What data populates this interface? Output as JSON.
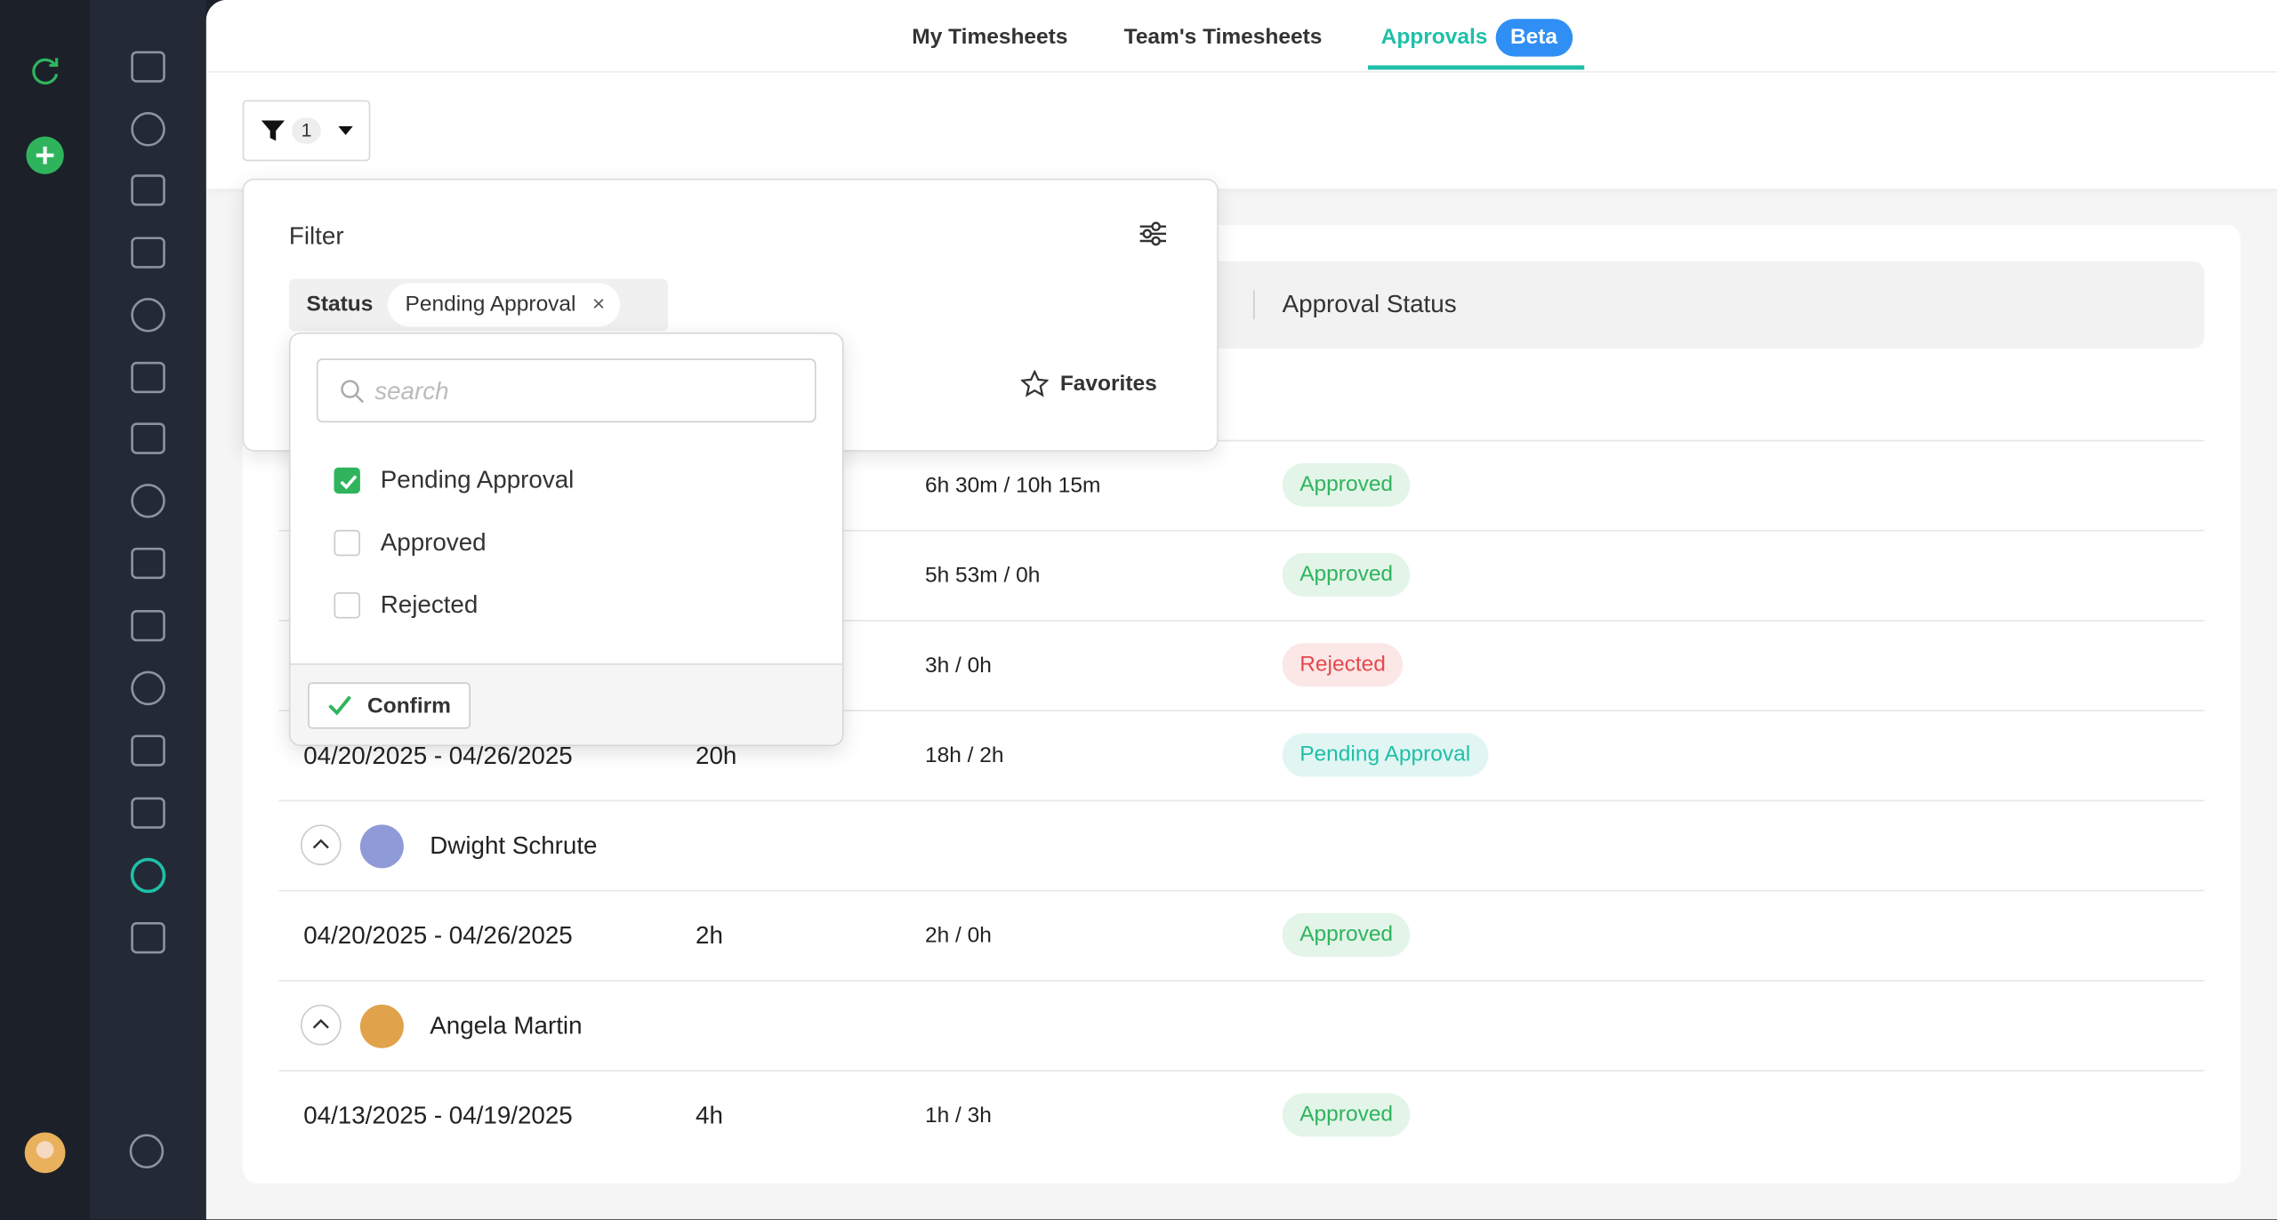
{
  "tabs": {
    "items": [
      "My Timesheets",
      "Team's Timesheets",
      "Approvals"
    ],
    "active": 2,
    "badge": "Beta"
  },
  "filter_button": {
    "count": 1
  },
  "filter_panel": {
    "title": "Filter",
    "chip_label": "Status",
    "chip_value": "Pending Approval",
    "favorites": "Favorites"
  },
  "dropdown": {
    "search_placeholder": "search",
    "options": [
      {
        "label": "Pending Approval",
        "checked": true
      },
      {
        "label": "Approved",
        "checked": false
      },
      {
        "label": "Rejected",
        "checked": false
      }
    ],
    "confirm": "Confirm"
  },
  "table": {
    "header": {
      "status": "Approval Status"
    },
    "rows": [
      {
        "tracked": "6h 30m / 10h 15m",
        "status": "Approved",
        "status_color": "#2fb45d"
      },
      {
        "tracked": "5h 53m / 0h",
        "status": "Approved",
        "status_color": "#2fb45d"
      },
      {
        "tracked": "3h / 0h",
        "status": "Rejected",
        "status_color": "#e5484d"
      },
      {
        "period": "04/20/2025 - 04/26/2025",
        "total": "20h",
        "tracked": "18h / 2h",
        "status": "Pending Approval",
        "status_color": "#1fbfa8"
      },
      {
        "user": "Dwight Schrute",
        "avatar_color": "#8f9bd8"
      },
      {
        "period": "04/20/2025 - 04/26/2025",
        "total": "2h",
        "tracked": "2h / 0h",
        "status": "Approved",
        "status_color": "#2fb45d"
      },
      {
        "user": "Angela Martin",
        "avatar_color": "#e0a24a"
      },
      {
        "period": "04/13/2025 - 04/19/2025",
        "total": "4h",
        "tracked": "1h / 3h",
        "status": "Approved",
        "status_color": "#2fb45d"
      }
    ]
  }
}
